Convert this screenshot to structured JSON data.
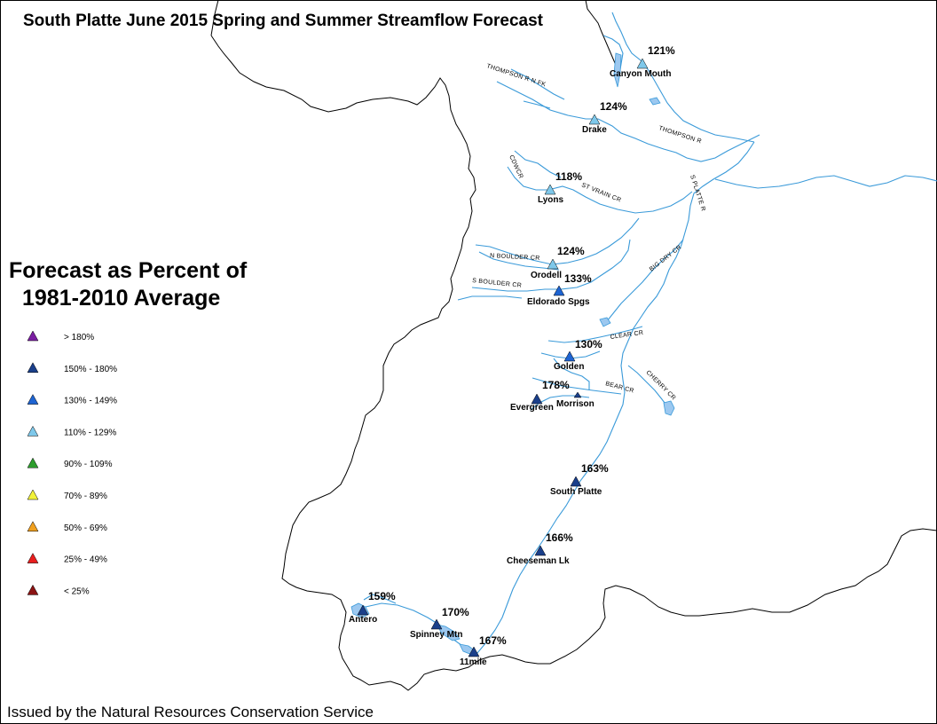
{
  "title": "South Platte June 2015 Spring and Summer Streamflow Forecast",
  "footer": "Issued by the Natural Resources Conservation Service",
  "legend": {
    "title_line1": "Forecast as Percent of",
    "title_line2": "1981-2010 Average",
    "items": [
      {
        "label": "> 180%",
        "color": "#7b1fa2"
      },
      {
        "label": "150% - 180%",
        "color": "#1a3f8a"
      },
      {
        "label": "130% - 149%",
        "color": "#1e64d2"
      },
      {
        "label": "110% - 129%",
        "color": "#7ec8ea"
      },
      {
        "label": "90% - 109%",
        "color": "#2e9e2e"
      },
      {
        "label": "70% - 89%",
        "color": "#f2f23a"
      },
      {
        "label": "50% - 69%",
        "color": "#f0a020"
      },
      {
        "label": "25% - 49%",
        "color": "#e81e1e"
      },
      {
        "label": "< 25%",
        "color": "#8b1414"
      }
    ]
  },
  "stations": [
    {
      "name": "Canyon Mouth",
      "percent": "121%",
      "category": 3
    },
    {
      "name": "Drake",
      "percent": "124%",
      "category": 3
    },
    {
      "name": "Lyons",
      "percent": "118%",
      "category": 3
    },
    {
      "name": "Orodell",
      "percent": "124%",
      "category": 3
    },
    {
      "name": "Eldorado Spgs",
      "percent": "133%",
      "category": 2
    },
    {
      "name": "Golden",
      "percent": "130%",
      "category": 2
    },
    {
      "name": "Evergreen",
      "percent": "178%",
      "category": 1
    },
    {
      "name": "Morrison",
      "percent": "",
      "category": 1
    },
    {
      "name": "South Platte",
      "percent": "163%",
      "category": 1
    },
    {
      "name": "Cheeseman Lk",
      "percent": "166%",
      "category": 1
    },
    {
      "name": "Antero",
      "percent": "159%",
      "category": 1
    },
    {
      "name": "Spinney Mtn",
      "percent": "170%",
      "category": 1
    },
    {
      "name": "11mile",
      "percent": "167%",
      "category": 1
    }
  ],
  "rivers": [
    "THOMPSON R N FK",
    "THOMPSON R",
    "CDWCR",
    "ST VRAIN CR",
    "S PLATTE R",
    "N BOULDER CR",
    "S BOULDER CR",
    "BIG DRY CR",
    "CLEAR CR",
    "BEAR CR",
    "CHERRY CR"
  ],
  "colors": {
    "river": "#3a9ad9",
    "boundary": "#000000",
    "lake": "#9cc8f0"
  }
}
